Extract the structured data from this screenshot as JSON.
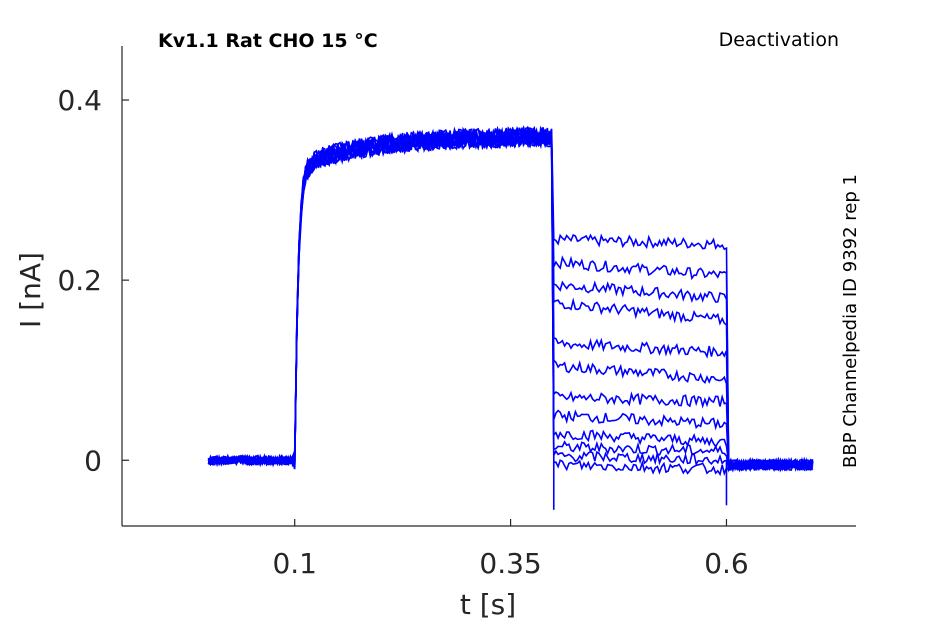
{
  "chart_data": {
    "type": "line",
    "title": "Kv1.1  Rat  CHO  15 °C",
    "protocol_label": "Deactivation",
    "source_label": "BBP Channelpedia ID 9392 rep 1",
    "xlabel": "t [s]",
    "ylabel": "I [nA]",
    "xlim": [
      -0.1,
      0.75
    ],
    "ylim": [
      -0.073,
      0.46
    ],
    "xticks": [
      0.1,
      0.35,
      0.6
    ],
    "xtick_labels": [
      "0.1",
      "0.35",
      "0.6"
    ],
    "yticks": [
      0,
      0.2,
      0.4
    ],
    "ytick_labels": [
      "0",
      "0.2",
      "0.4"
    ],
    "grid": false,
    "line_color": "#0000ff",
    "protocol_times": {
      "start": 0.0,
      "activation_on": 0.1,
      "deactivation_on": 0.4,
      "deactivation_off": 0.6,
      "end": 0.7
    },
    "activation_plateau": 0.36,
    "series": [
      {
        "values": [
          0.0,
          0.36,
          0.245,
          0.24,
          -0.005
        ]
      },
      {
        "values": [
          0.0,
          0.36,
          0.22,
          0.205,
          -0.005
        ]
      },
      {
        "values": [
          0.0,
          0.36,
          0.195,
          0.18,
          -0.005
        ]
      },
      {
        "values": [
          0.0,
          0.36,
          0.175,
          0.155,
          -0.005
        ]
      },
      {
        "values": [
          0.0,
          0.36,
          0.13,
          0.12,
          -0.005
        ]
      },
      {
        "values": [
          0.0,
          0.36,
          0.105,
          0.09,
          -0.005
        ]
      },
      {
        "values": [
          0.0,
          0.36,
          0.07,
          0.065,
          -0.005
        ]
      },
      {
        "values": [
          0.0,
          0.36,
          0.05,
          0.04,
          -0.005
        ]
      },
      {
        "values": [
          0.0,
          0.36,
          0.03,
          0.02,
          -0.005
        ]
      },
      {
        "values": [
          0.0,
          0.36,
          0.015,
          0.01,
          -0.005
        ]
      },
      {
        "values": [
          0.0,
          0.36,
          0.005,
          0.0,
          -0.005
        ]
      },
      {
        "values": [
          0.0,
          0.36,
          -0.005,
          -0.01,
          -0.005
        ]
      }
    ],
    "series_value_keys": [
      "baseline",
      "activation_plateau",
      "deactivation_start",
      "deactivation_end",
      "tail"
    ]
  }
}
